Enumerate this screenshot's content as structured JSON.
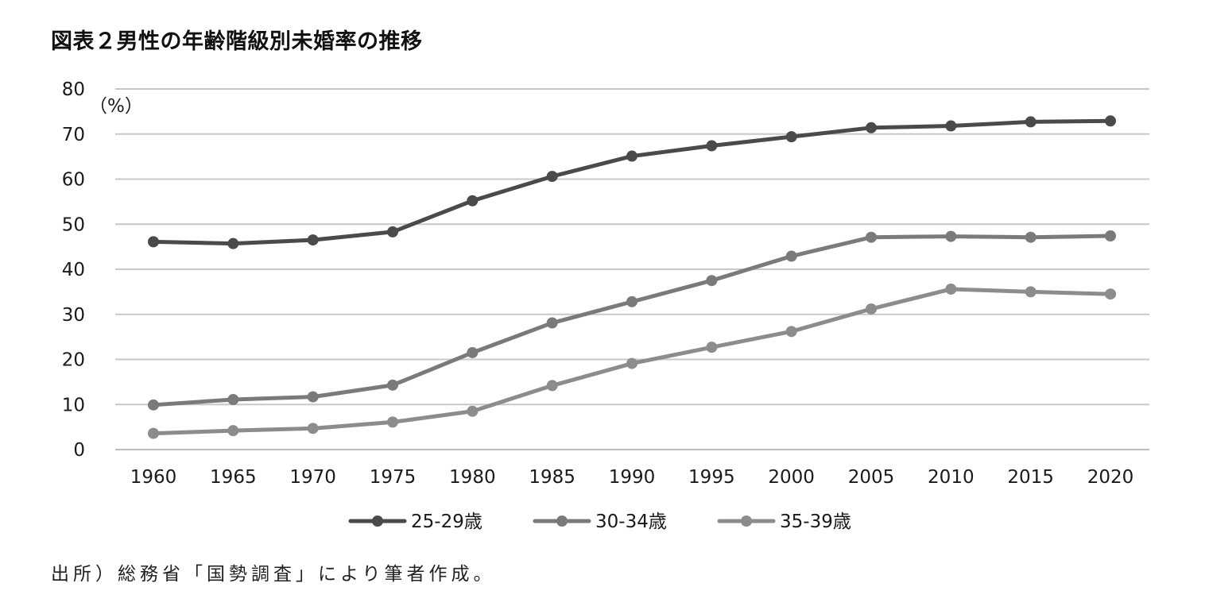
{
  "title": "図表２男性の年齢階級別未婚率の推移",
  "source": "出所）総務省「国勢調査」により筆者作成。",
  "chart_data": {
    "type": "line",
    "unit_label": "（%）",
    "categories": [
      "1960",
      "1965",
      "1970",
      "1975",
      "1980",
      "1985",
      "1990",
      "1995",
      "2000",
      "2005",
      "2010",
      "2015",
      "2020"
    ],
    "y_ticks": [
      "0",
      "10",
      "20",
      "30",
      "40",
      "50",
      "60",
      "70",
      "80"
    ],
    "ylim": [
      0,
      80
    ],
    "grid": true,
    "legend_position": "bottom",
    "series": [
      {
        "name": "25-29歳",
        "color": "#4a4a4a",
        "values": [
          46.1,
          45.7,
          46.5,
          48.3,
          55.2,
          60.6,
          65.1,
          67.4,
          69.4,
          71.4,
          71.8,
          72.7,
          72.9
        ]
      },
      {
        "name": "30-34歳",
        "color": "#7a7a7a",
        "values": [
          9.9,
          11.1,
          11.7,
          14.3,
          21.5,
          28.1,
          32.8,
          37.5,
          42.9,
          47.1,
          47.3,
          47.1,
          47.4
        ]
      },
      {
        "name": "35-39歳",
        "color": "#8c8c8c",
        "values": [
          3.6,
          4.2,
          4.7,
          6.1,
          8.5,
          14.2,
          19.1,
          22.7,
          26.2,
          31.2,
          35.6,
          35.0,
          34.5
        ]
      }
    ]
  }
}
